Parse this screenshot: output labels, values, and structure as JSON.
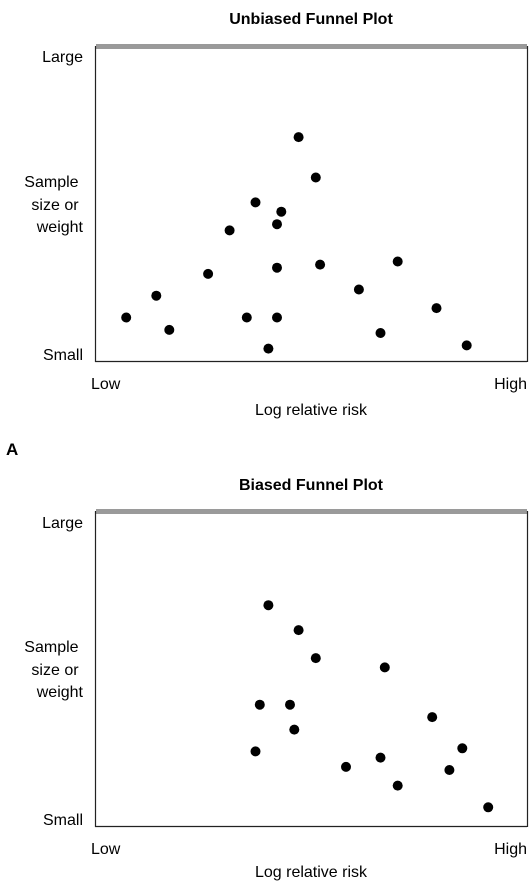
{
  "panel_label_a": "A",
  "chart_data": [
    {
      "type": "scatter",
      "title": "Unbiased Funnel Plot",
      "xlabel": "Log relative risk",
      "ylabel_lines": [
        "Sample",
        "size or",
        "weight"
      ],
      "y_top_label": "Large",
      "y_bottom_label": "Small",
      "x_left_label": "Low",
      "x_right_label": "High",
      "xlim": [
        0,
        100
      ],
      "ylim": [
        0,
        100
      ],
      "legend": "none",
      "grid": false,
      "points": [
        {
          "x": 47,
          "y": 72
        },
        {
          "x": 51,
          "y": 59
        },
        {
          "x": 37,
          "y": 51
        },
        {
          "x": 43,
          "y": 48
        },
        {
          "x": 42,
          "y": 44
        },
        {
          "x": 31,
          "y": 42
        },
        {
          "x": 42,
          "y": 30
        },
        {
          "x": 26,
          "y": 28
        },
        {
          "x": 52,
          "y": 31
        },
        {
          "x": 70,
          "y": 32
        },
        {
          "x": 61,
          "y": 23
        },
        {
          "x": 14,
          "y": 21
        },
        {
          "x": 7,
          "y": 14
        },
        {
          "x": 79,
          "y": 17
        },
        {
          "x": 17,
          "y": 10
        },
        {
          "x": 35,
          "y": 14
        },
        {
          "x": 42,
          "y": 14
        },
        {
          "x": 66,
          "y": 9
        },
        {
          "x": 40,
          "y": 4
        },
        {
          "x": 86,
          "y": 5
        }
      ]
    },
    {
      "type": "scatter",
      "title": "Biased Funnel Plot",
      "xlabel": "Log relative risk",
      "ylabel_lines": [
        "Sample",
        "size or",
        "weight"
      ],
      "y_top_label": "Large",
      "y_bottom_label": "Small",
      "x_left_label": "Low",
      "x_right_label": "High",
      "xlim": [
        0,
        100
      ],
      "ylim": [
        0,
        100
      ],
      "legend": "none",
      "grid": false,
      "points": [
        {
          "x": 40,
          "y": 71
        },
        {
          "x": 47,
          "y": 63
        },
        {
          "x": 51,
          "y": 54
        },
        {
          "x": 67,
          "y": 51
        },
        {
          "x": 38,
          "y": 39
        },
        {
          "x": 45,
          "y": 39
        },
        {
          "x": 46,
          "y": 31
        },
        {
          "x": 78,
          "y": 35
        },
        {
          "x": 37,
          "y": 24
        },
        {
          "x": 58,
          "y": 19
        },
        {
          "x": 66,
          "y": 22
        },
        {
          "x": 85,
          "y": 25
        },
        {
          "x": 70,
          "y": 13
        },
        {
          "x": 82,
          "y": 18
        },
        {
          "x": 91,
          "y": 6
        }
      ]
    }
  ]
}
